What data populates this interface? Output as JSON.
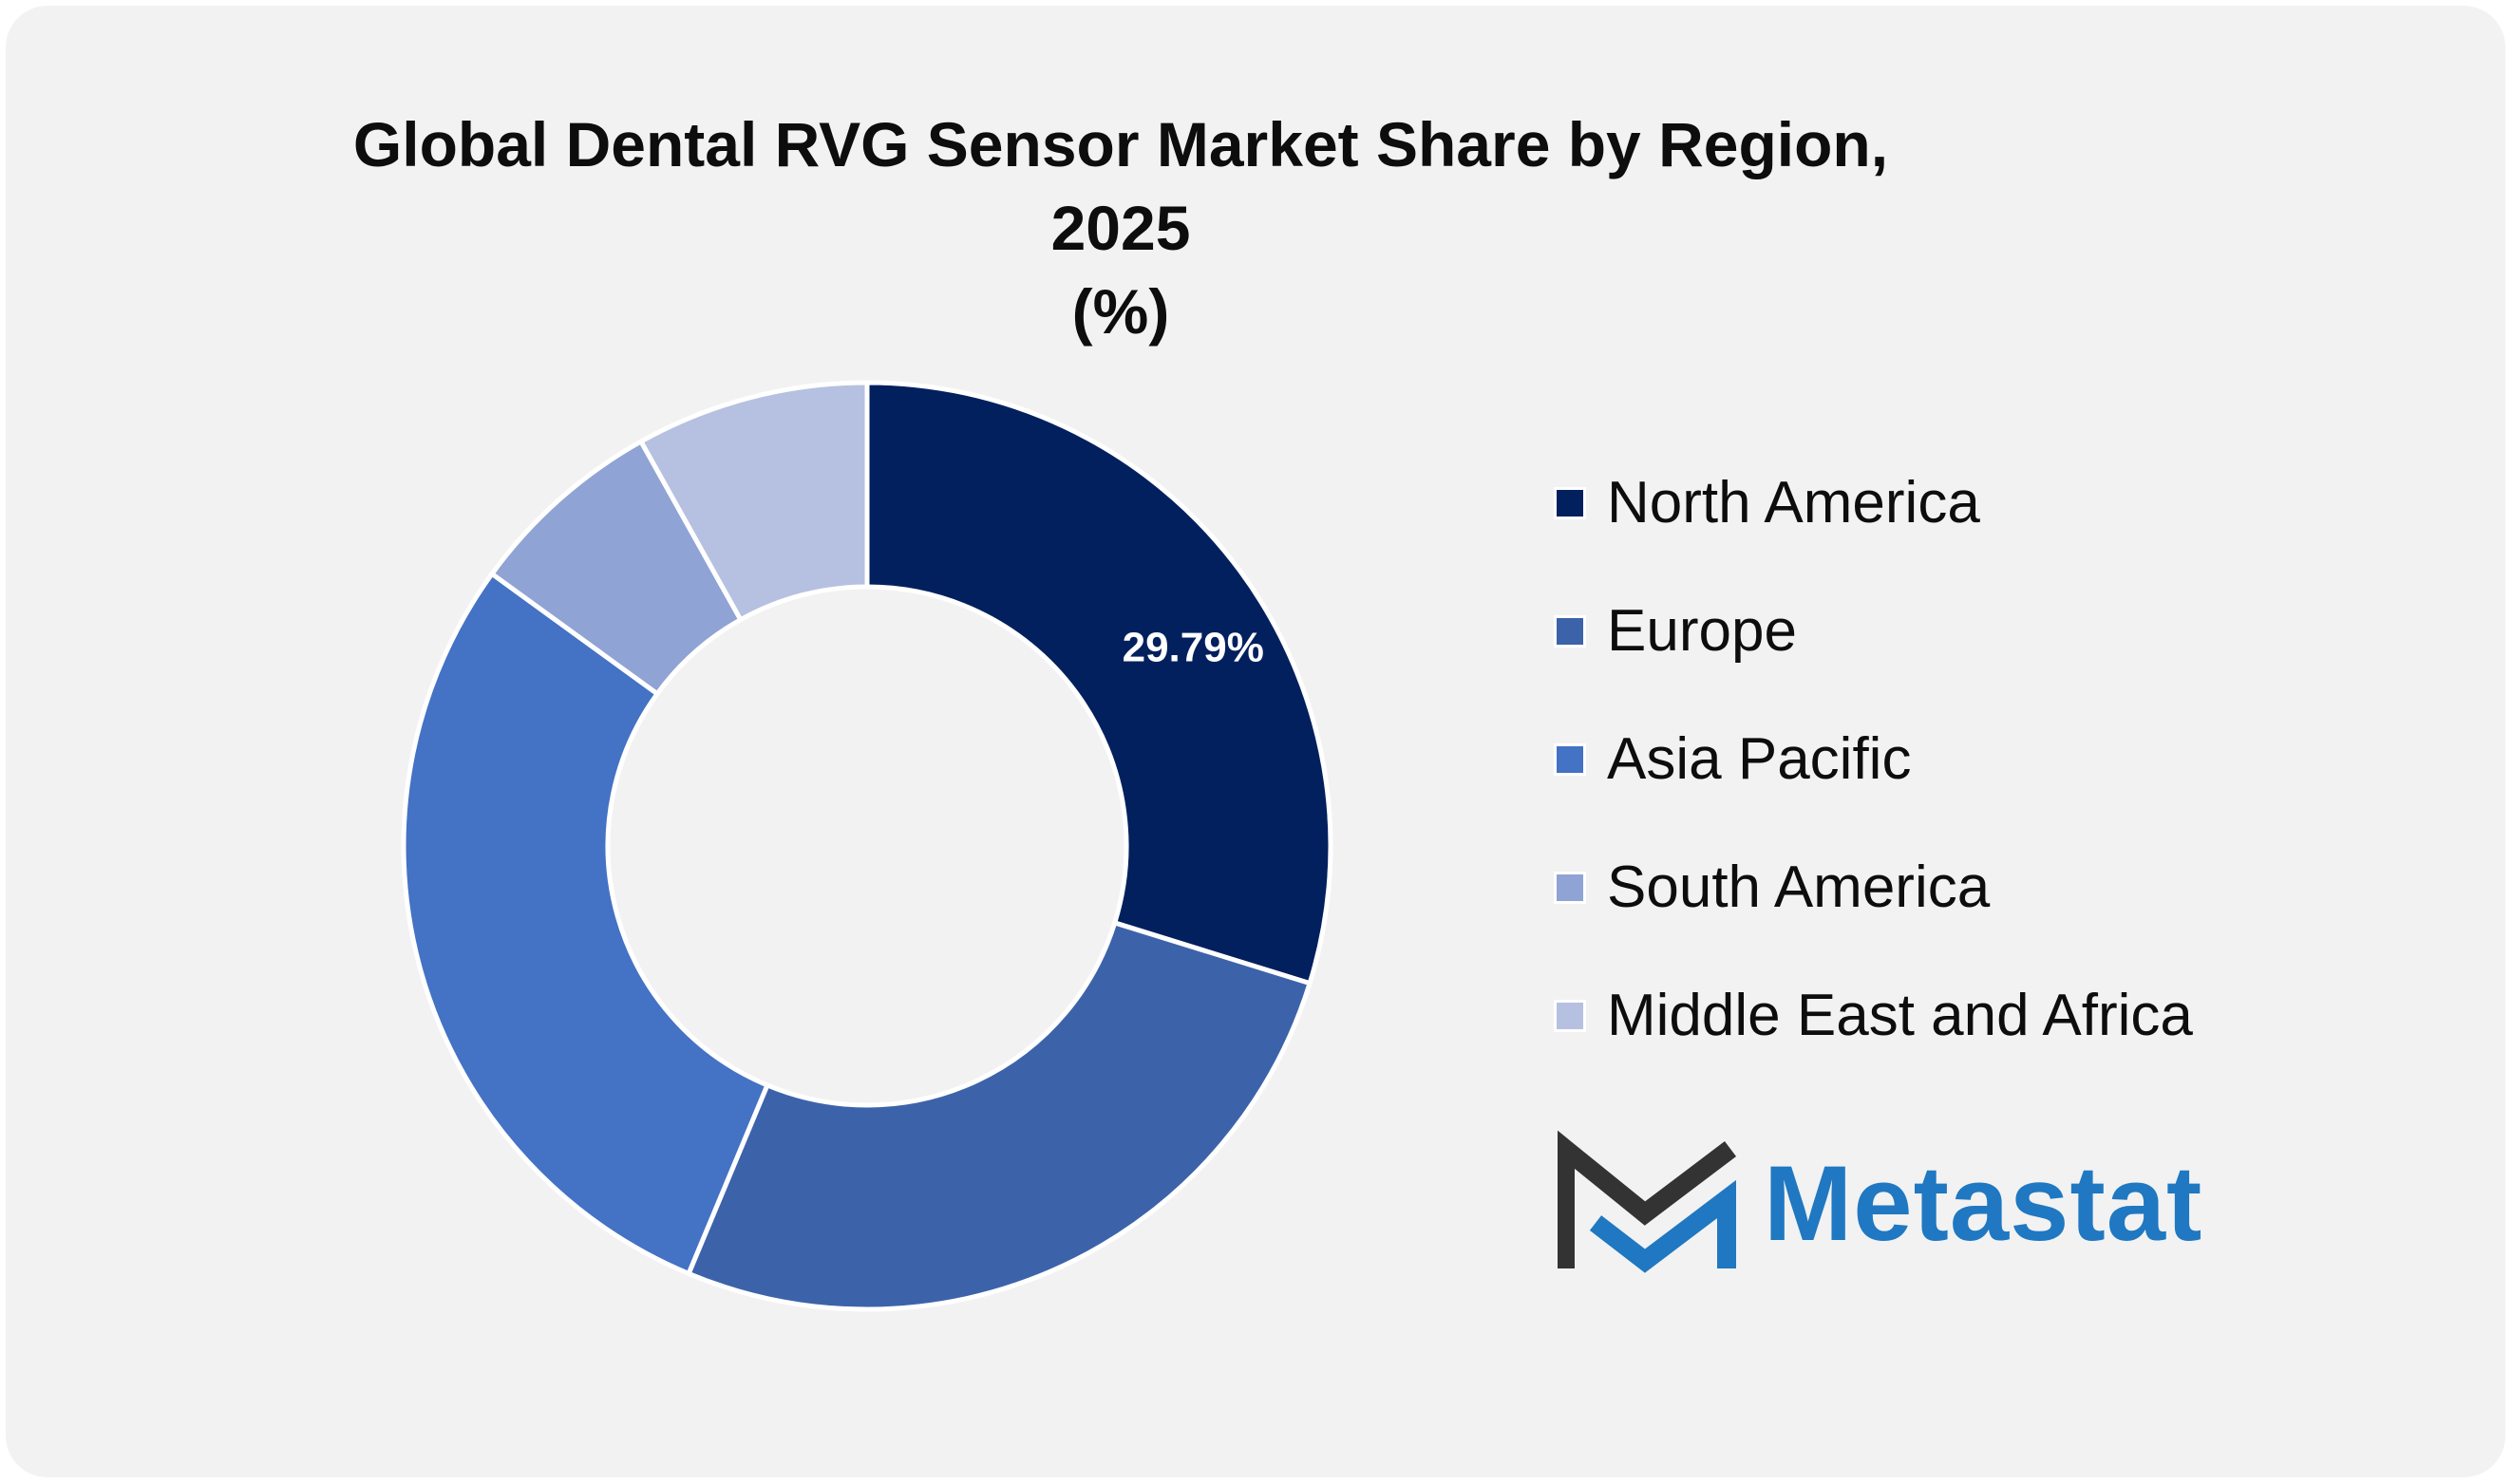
{
  "chart_data": {
    "type": "pie",
    "donut": true,
    "title": "Global Dental RVG Sensor Market Share by Region, 2025 (%)",
    "title_lines": [
      "Global Dental RVG Sensor Market Share by Region, 2025",
      "(%)"
    ],
    "categories": [
      "North America",
      "Europe",
      "Asia Pacific",
      "South America",
      "Middle East and Africa"
    ],
    "values": [
      29.79,
      26.5,
      28.7,
      6.9,
      8.11
    ],
    "data_labels": [
      "29.79%"
    ],
    "colors": [
      "#03205e",
      "#3c63aa",
      "#4472c4",
      "#8fa3d4",
      "#b6c1e1"
    ],
    "legend_position": "right"
  },
  "brand": {
    "name": "Metastat",
    "text_color": "#1f78c1",
    "mark_dark": "#333333",
    "mark_blue": "#1f78c1"
  },
  "background": "#f2f2f2"
}
